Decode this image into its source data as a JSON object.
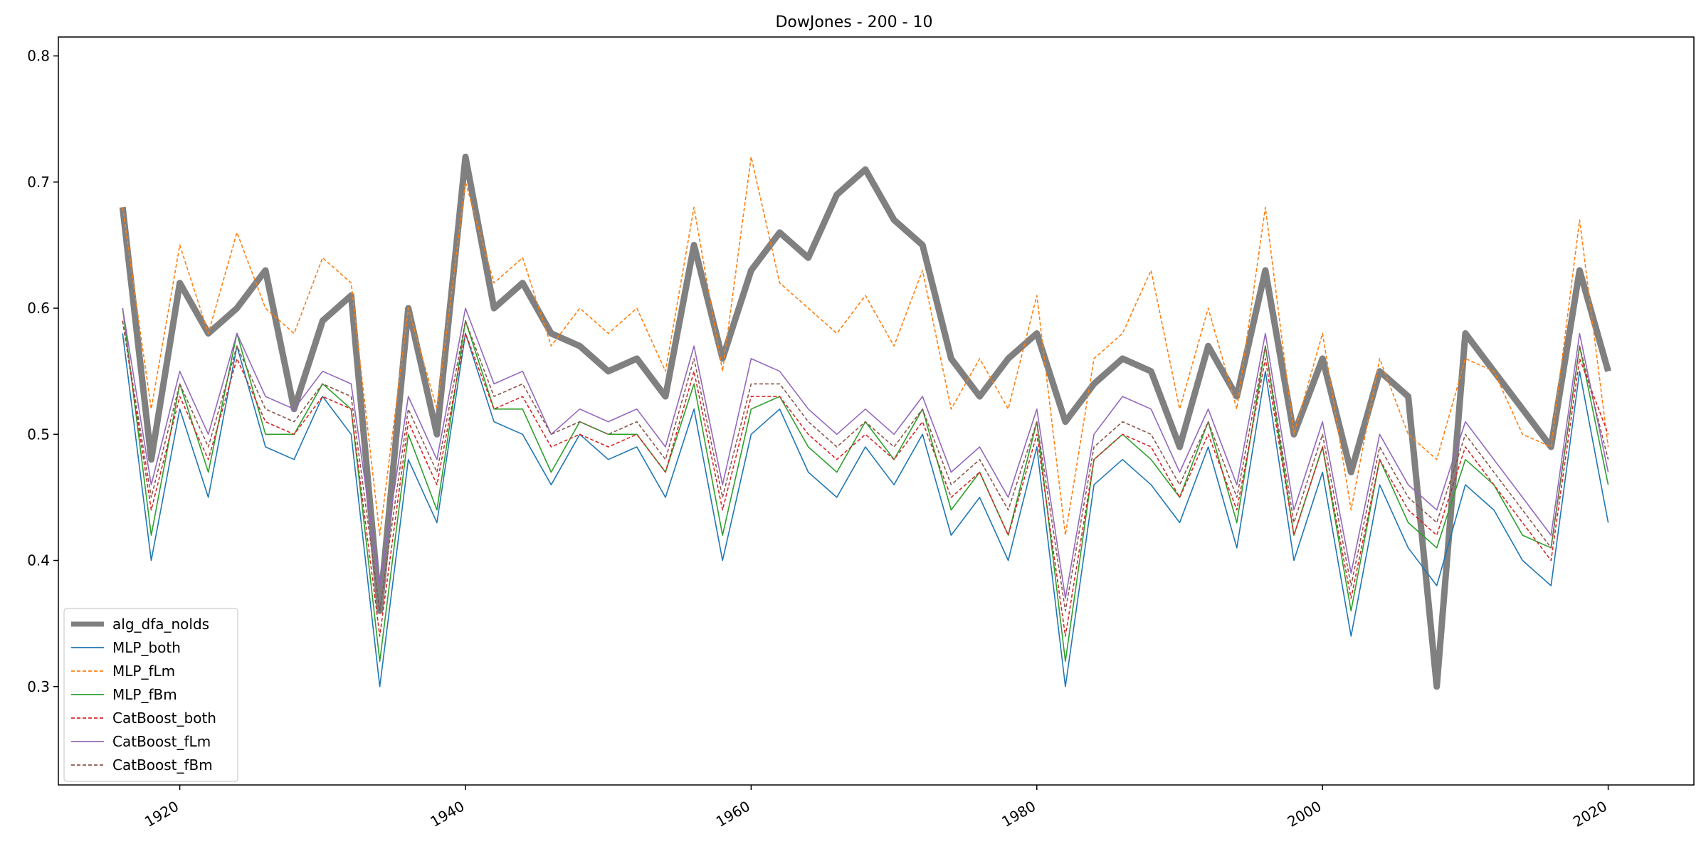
{
  "chart_data": {
    "type": "line",
    "title": "DowJones - 200 - 10",
    "xlabel": "",
    "ylabel": "",
    "xlim": [
      1911.5,
      2026.0
    ],
    "ylim": [
      0.222,
      0.815
    ],
    "x_ticks": [
      {
        "value": 1920,
        "label": "1920"
      },
      {
        "value": 1940,
        "label": "1940"
      },
      {
        "value": 1960,
        "label": "1960"
      },
      {
        "value": 1980,
        "label": "1980"
      },
      {
        "value": 2000,
        "label": "2000"
      },
      {
        "value": 2020,
        "label": "2020"
      }
    ],
    "y_ticks": [
      {
        "value": 0.3,
        "label": "0.3"
      },
      {
        "value": 0.4,
        "label": "0.4"
      },
      {
        "value": 0.5,
        "label": "0.5"
      },
      {
        "value": 0.6,
        "label": "0.6"
      },
      {
        "value": 0.7,
        "label": "0.7"
      },
      {
        "value": 0.8,
        "label": "0.8"
      }
    ],
    "grid": false,
    "legend_position": "lower-left",
    "x": [
      1916,
      1918,
      1920,
      1922,
      1924,
      1926,
      1928,
      1930,
      1932,
      1934,
      1936,
      1938,
      1940,
      1942,
      1944,
      1946,
      1948,
      1950,
      1952,
      1954,
      1956,
      1958,
      1960,
      1962,
      1964,
      1966,
      1968,
      1970,
      1972,
      1974,
      1976,
      1978,
      1980,
      1982,
      1984,
      1986,
      1988,
      1990,
      1992,
      1994,
      1996,
      1998,
      2000,
      2002,
      2004,
      2006,
      2008,
      2010,
      2012,
      2014,
      2016,
      2018,
      2020
    ],
    "series": [
      {
        "name": "alg_dfa_nolds",
        "color": "#808080",
        "style": "solid",
        "width": 9,
        "values": [
          0.68,
          0.48,
          0.62,
          0.58,
          0.6,
          0.63,
          0.52,
          0.59,
          0.61,
          0.36,
          0.6,
          0.5,
          0.72,
          0.6,
          0.62,
          0.58,
          0.57,
          0.55,
          0.56,
          0.53,
          0.65,
          0.56,
          0.63,
          0.66,
          0.64,
          0.69,
          0.71,
          0.67,
          0.65,
          0.56,
          0.53,
          0.56,
          0.58,
          0.51,
          0.54,
          0.56,
          0.55,
          0.49,
          0.57,
          0.53,
          0.63,
          0.5,
          0.56,
          0.47,
          0.55,
          0.53,
          0.3,
          0.58,
          0.55,
          0.52,
          0.49,
          0.63,
          0.55
        ]
      },
      {
        "name": "MLP_both",
        "color": "#1f77b4",
        "style": "solid",
        "width": 1.6,
        "values": [
          0.58,
          0.4,
          0.52,
          0.45,
          0.57,
          0.49,
          0.48,
          0.53,
          0.5,
          0.3,
          0.48,
          0.43,
          0.58,
          0.51,
          0.5,
          0.46,
          0.5,
          0.48,
          0.49,
          0.45,
          0.52,
          0.4,
          0.5,
          0.52,
          0.47,
          0.45,
          0.49,
          0.46,
          0.5,
          0.42,
          0.45,
          0.4,
          0.49,
          0.3,
          0.46,
          0.48,
          0.46,
          0.43,
          0.49,
          0.41,
          0.55,
          0.4,
          0.47,
          0.34,
          0.46,
          0.41,
          0.38,
          0.46,
          0.44,
          0.4,
          0.38,
          0.55,
          0.43
        ]
      },
      {
        "name": "MLP_fLm",
        "color": "#ff7f0e",
        "style": "dashed",
        "width": 1.6,
        "values": [
          0.68,
          0.52,
          0.65,
          0.58,
          0.66,
          0.6,
          0.58,
          0.64,
          0.62,
          0.42,
          0.6,
          0.52,
          0.7,
          0.62,
          0.64,
          0.57,
          0.6,
          0.58,
          0.6,
          0.55,
          0.68,
          0.55,
          0.72,
          0.62,
          0.6,
          0.58,
          0.61,
          0.57,
          0.63,
          0.52,
          0.56,
          0.52,
          0.61,
          0.42,
          0.56,
          0.58,
          0.63,
          0.52,
          0.6,
          0.52,
          0.68,
          0.5,
          0.58,
          0.44,
          0.56,
          0.5,
          0.48,
          0.56,
          0.55,
          0.5,
          0.49,
          0.67,
          0.49
        ]
      },
      {
        "name": "MLP_fBm",
        "color": "#2ca02c",
        "style": "solid",
        "width": 1.6,
        "values": [
          0.6,
          0.42,
          0.54,
          0.47,
          0.58,
          0.5,
          0.5,
          0.54,
          0.52,
          0.32,
          0.5,
          0.44,
          0.59,
          0.52,
          0.52,
          0.47,
          0.51,
          0.5,
          0.5,
          0.47,
          0.54,
          0.42,
          0.52,
          0.53,
          0.49,
          0.47,
          0.51,
          0.48,
          0.52,
          0.44,
          0.47,
          0.42,
          0.51,
          0.32,
          0.48,
          0.5,
          0.48,
          0.45,
          0.51,
          0.43,
          0.57,
          0.42,
          0.49,
          0.36,
          0.48,
          0.43,
          0.41,
          0.48,
          0.46,
          0.42,
          0.41,
          0.57,
          0.46
        ]
      },
      {
        "name": "CatBoost_both",
        "color": "#d62728",
        "style": "dashed",
        "width": 1.6,
        "values": [
          0.59,
          0.44,
          0.53,
          0.48,
          0.56,
          0.51,
          0.5,
          0.53,
          0.52,
          0.34,
          0.51,
          0.46,
          0.58,
          0.52,
          0.53,
          0.49,
          0.5,
          0.49,
          0.5,
          0.47,
          0.55,
          0.44,
          0.53,
          0.53,
          0.5,
          0.48,
          0.5,
          0.48,
          0.51,
          0.45,
          0.47,
          0.42,
          0.5,
          0.34,
          0.48,
          0.5,
          0.49,
          0.45,
          0.5,
          0.44,
          0.56,
          0.42,
          0.49,
          0.37,
          0.48,
          0.44,
          0.42,
          0.49,
          0.46,
          0.43,
          0.4,
          0.56,
          0.5
        ]
      },
      {
        "name": "CatBoost_fLm",
        "color": "#9467bd",
        "style": "solid",
        "width": 1.6,
        "values": [
          0.6,
          0.46,
          0.55,
          0.5,
          0.58,
          0.53,
          0.52,
          0.55,
          0.54,
          0.38,
          0.53,
          0.48,
          0.6,
          0.54,
          0.55,
          0.5,
          0.52,
          0.51,
          0.52,
          0.49,
          0.57,
          0.46,
          0.56,
          0.55,
          0.52,
          0.5,
          0.52,
          0.5,
          0.53,
          0.47,
          0.49,
          0.45,
          0.52,
          0.37,
          0.5,
          0.53,
          0.52,
          0.47,
          0.52,
          0.46,
          0.58,
          0.44,
          0.51,
          0.39,
          0.5,
          0.46,
          0.44,
          0.51,
          0.48,
          0.45,
          0.42,
          0.58,
          0.47
        ]
      },
      {
        "name": "CatBoost_fBm",
        "color": "#8c564b",
        "style": "dashed",
        "width": 1.6,
        "values": [
          0.59,
          0.45,
          0.54,
          0.49,
          0.57,
          0.52,
          0.51,
          0.54,
          0.53,
          0.36,
          0.52,
          0.47,
          0.59,
          0.53,
          0.54,
          0.5,
          0.51,
          0.5,
          0.51,
          0.48,
          0.56,
          0.45,
          0.54,
          0.54,
          0.51,
          0.49,
          0.51,
          0.49,
          0.52,
          0.46,
          0.48,
          0.44,
          0.51,
          0.36,
          0.49,
          0.51,
          0.5,
          0.46,
          0.51,
          0.45,
          0.57,
          0.43,
          0.5,
          0.38,
          0.49,
          0.45,
          0.43,
          0.5,
          0.47,
          0.44,
          0.41,
          0.57,
          0.48
        ]
      }
    ]
  }
}
